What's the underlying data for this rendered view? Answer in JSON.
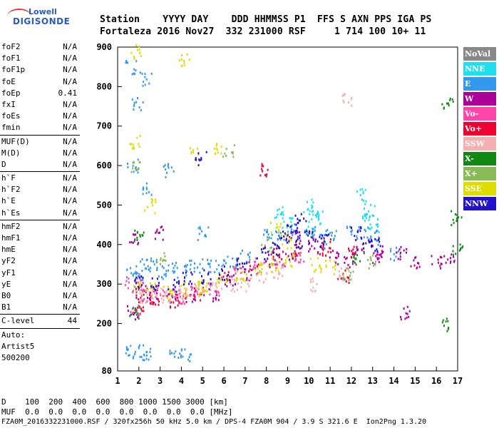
{
  "logo": {
    "line1": "Lowell",
    "line2": "DIGISONDE"
  },
  "header": {
    "row1": "Station    YYYY DAY    DDD HHMMSS P1  FFS S AXN PPS IGA PS",
    "row2": "Fortaleza 2016 Nov27  332 231000 RSF     1 714 100 10+ 11"
  },
  "params": {
    "group1": [
      {
        "name": "foF2",
        "value": "N/A"
      },
      {
        "name": "foF1",
        "value": "N/A"
      },
      {
        "name": "foF1p",
        "value": "N/A"
      },
      {
        "name": "foE",
        "value": "N/A"
      },
      {
        "name": "foEp",
        "value": "0.41"
      },
      {
        "name": "fxI",
        "value": "N/A"
      },
      {
        "name": "foEs",
        "value": "N/A"
      },
      {
        "name": "fmin",
        "value": "N/A"
      }
    ],
    "group2": [
      {
        "name": "MUF(D)",
        "value": "N/A"
      },
      {
        "name": "M(D)",
        "value": "N/A"
      },
      {
        "name": "D",
        "value": "N/A"
      }
    ],
    "group3": [
      {
        "name": "h`F",
        "value": "N/A"
      },
      {
        "name": "h`F2",
        "value": "N/A"
      },
      {
        "name": "h`E",
        "value": "N/A"
      },
      {
        "name": "h`Es",
        "value": "N/A"
      }
    ],
    "group4": [
      {
        "name": "hmF2",
        "value": "N/A"
      },
      {
        "name": "hmF1",
        "value": "N/A"
      },
      {
        "name": "hmE",
        "value": "N/A"
      },
      {
        "name": "yF2",
        "value": "N/A"
      },
      {
        "name": "yF1",
        "value": "N/A"
      },
      {
        "name": "yE",
        "value": "N/A"
      },
      {
        "name": "B0",
        "value": "N/A"
      },
      {
        "name": "B1",
        "value": "N/A"
      }
    ],
    "clevel": {
      "name": "C-level",
      "value": "44"
    },
    "auto": [
      "Auto:",
      "Artist5",
      "500200"
    ]
  },
  "legend": [
    {
      "label": "NoVal",
      "color": "#888888"
    },
    {
      "label": "NNE",
      "color": "#22ddee"
    },
    {
      "label": "E",
      "color": "#3399ee"
    },
    {
      "label": "W",
      "color": "#aa0099"
    },
    {
      "label": "Vo-",
      "color": "#ff44aa"
    },
    {
      "label": "Vo+",
      "color": "#ee0033"
    },
    {
      "label": "SSW",
      "color": "#f4b0b0"
    },
    {
      "label": "X-",
      "color": "#118811"
    },
    {
      "label": "X+",
      "color": "#88bb55"
    },
    {
      "label": "SSE",
      "color": "#dddd00"
    },
    {
      "label": "NNW",
      "color": "#2211cc"
    }
  ],
  "footer": {
    "d_row": "D    100  200  400  600  800 1000 1500 3000 [km]",
    "muf_row": "MUF  0.0  0.0  0.0  0.0  0.0  0.0  0.0  0.0 [MHz]",
    "info": "FZA0M_2016332231000.RSF / 320fx256h 50 kHz 5.0 km / DPS-4 FZA0M 904 / 3.9 S 321.6 E  Ion2Png 1.3.20"
  },
  "chart_data": {
    "type": "scatter",
    "xlabel": "",
    "ylabel": "",
    "xlim": [
      1,
      17
    ],
    "ylim": [
      80,
      900
    ],
    "xticks": [
      1,
      2,
      3,
      4,
      5,
      6,
      7,
      8,
      9,
      10,
      11,
      12,
      13,
      14,
      15,
      16,
      17
    ],
    "yticks": [
      80,
      200,
      300,
      400,
      500,
      600,
      700,
      800,
      900
    ],
    "clusters": [
      {
        "name": "NNE",
        "points": [
          [
            10.0,
            500
          ],
          [
            10.2,
            480
          ],
          [
            10.4,
            470
          ],
          [
            12.6,
            470
          ],
          [
            12.8,
            490
          ],
          [
            9.0,
            460
          ],
          [
            10.1,
            450
          ],
          [
            13.0,
            450
          ],
          [
            12.4,
            530
          ],
          [
            8.6,
            480
          ]
        ]
      },
      {
        "name": "E",
        "points": [
          [
            1.6,
            850
          ],
          [
            1.9,
            760
          ],
          [
            2.3,
            820
          ],
          [
            1.9,
            330
          ],
          [
            2.2,
            350
          ],
          [
            2.6,
            350
          ],
          [
            3.0,
            330
          ],
          [
            3.5,
            340
          ],
          [
            4.0,
            335
          ],
          [
            4.6,
            345
          ],
          [
            5.2,
            350
          ],
          [
            5.8,
            345
          ],
          [
            6.4,
            360
          ],
          [
            7.0,
            370
          ],
          [
            8.0,
            430
          ],
          [
            8.6,
            420
          ],
          [
            9.2,
            440
          ],
          [
            10.0,
            430
          ],
          [
            10.6,
            410
          ],
          [
            11.0,
            430
          ],
          [
            12.0,
            440
          ],
          [
            12.5,
            430
          ],
          [
            13.0,
            420
          ],
          [
            14.0,
            380
          ],
          [
            2.0,
            130
          ],
          [
            1.6,
            128
          ],
          [
            2.3,
            127
          ],
          [
            1.7,
            600
          ],
          [
            2.4,
            540
          ],
          [
            3.4,
            590
          ],
          [
            5.0,
            430
          ],
          [
            1.6,
            335
          ],
          [
            3.7,
            128
          ],
          [
            4.2,
            120
          ]
        ]
      },
      {
        "name": "W",
        "points": [
          [
            1.7,
            230
          ],
          [
            2.1,
            280
          ],
          [
            2.6,
            270
          ],
          [
            3.5,
            260
          ],
          [
            4.4,
            270
          ],
          [
            5.5,
            275
          ],
          [
            6.3,
            310
          ],
          [
            7.2,
            330
          ],
          [
            8.2,
            360
          ],
          [
            9.1,
            380
          ],
          [
            10.2,
            400
          ],
          [
            11.1,
            370
          ],
          [
            12.3,
            390
          ],
          [
            13.4,
            380
          ],
          [
            14.3,
            380
          ],
          [
            15.0,
            360
          ],
          [
            16.0,
            360
          ],
          [
            16.6,
            360
          ],
          [
            14.5,
            230
          ],
          [
            1.7,
            420
          ],
          [
            3.0,
            430
          ],
          [
            9.3,
            430
          ],
          [
            11.9,
            360
          ],
          [
            13.2,
            370
          ]
        ]
      },
      {
        "name": "Vo-",
        "points": [
          [
            1.8,
            240
          ],
          [
            2.3,
            270
          ],
          [
            3.0,
            280
          ],
          [
            3.8,
            275
          ],
          [
            4.6,
            285
          ],
          [
            5.5,
            290
          ],
          [
            6.6,
            330
          ],
          [
            7.6,
            350
          ],
          [
            8.6,
            360
          ],
          [
            1.6,
            300
          ],
          [
            2.0,
            300
          ],
          [
            4.0,
            270
          ],
          [
            9.5,
            370
          ]
        ]
      },
      {
        "name": "Vo+",
        "points": [
          [
            2.0,
            250
          ],
          [
            2.7,
            265
          ],
          [
            3.6,
            262
          ],
          [
            4.8,
            275
          ],
          [
            6.0,
            320
          ],
          [
            7.4,
            345
          ],
          [
            8.5,
            380
          ],
          [
            9.4,
            390
          ],
          [
            10.8,
            400
          ],
          [
            12.1,
            380
          ],
          [
            7.8,
            590
          ],
          [
            11.6,
            320
          ],
          [
            10.5,
            390
          ]
        ]
      },
      {
        "name": "SSW",
        "points": [
          [
            2.2,
            270
          ],
          [
            2.8,
            280
          ],
          [
            3.3,
            270
          ],
          [
            4.0,
            282
          ],
          [
            4.8,
            290
          ],
          [
            5.6,
            290
          ],
          [
            6.4,
            300
          ],
          [
            7.0,
            300
          ],
          [
            7.8,
            320
          ],
          [
            8.5,
            330
          ],
          [
            10.1,
            300
          ],
          [
            11.6,
            330
          ],
          [
            11.8,
            770
          ]
        ]
      },
      {
        "name": "X-",
        "points": [
          [
            1.8,
            230
          ],
          [
            2.0,
            420
          ],
          [
            16.5,
            760
          ],
          [
            16.5,
            200
          ],
          [
            16.9,
            470
          ],
          [
            17.0,
            390
          ],
          [
            12.3,
            370
          ]
        ]
      },
      {
        "name": "X+",
        "points": [
          [
            1.8,
            600
          ],
          [
            3.0,
            370
          ],
          [
            8.0,
            400
          ],
          [
            11.8,
            330
          ],
          [
            12.9,
            360
          ],
          [
            6.2,
            640
          ]
        ]
      },
      {
        "name": "SSE",
        "points": [
          [
            1.8,
            890
          ],
          [
            1.8,
            660
          ],
          [
            2.0,
            290
          ],
          [
            2.6,
            290
          ],
          [
            3.4,
            280
          ],
          [
            4.2,
            290
          ],
          [
            5.0,
            300
          ],
          [
            5.9,
            310
          ],
          [
            6.8,
            320
          ],
          [
            7.6,
            340
          ],
          [
            8.3,
            350
          ],
          [
            9.0,
            360
          ],
          [
            10.3,
            350
          ],
          [
            11.0,
            345
          ],
          [
            8.4,
            440
          ],
          [
            8.9,
            410
          ],
          [
            4.6,
            630
          ],
          [
            5.6,
            640
          ],
          [
            4.1,
            870
          ],
          [
            2.5,
            500
          ],
          [
            5.0,
            290
          ]
        ]
      },
      {
        "name": "NNW",
        "points": [
          [
            2.0,
            310
          ],
          [
            2.8,
            300
          ],
          [
            3.6,
            300
          ],
          [
            4.3,
            315
          ],
          [
            5.1,
            320
          ],
          [
            6.0,
            330
          ],
          [
            6.8,
            350
          ],
          [
            7.8,
            380
          ],
          [
            8.4,
            390
          ],
          [
            8.8,
            420
          ],
          [
            9.5,
            410
          ],
          [
            10.0,
            420
          ],
          [
            10.7,
            410
          ],
          [
            12.2,
            430
          ],
          [
            12.7,
            410
          ],
          [
            13.1,
            400
          ],
          [
            4.9,
            620
          ],
          [
            9.2,
            440
          ],
          [
            9.6,
            470
          ]
        ]
      }
    ]
  }
}
